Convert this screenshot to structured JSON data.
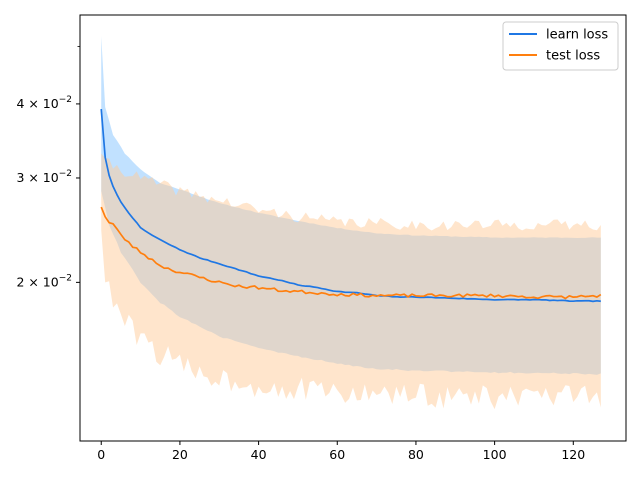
{
  "chart_data": {
    "type": "line",
    "y_scale": "log",
    "xlim": [
      -5.4,
      133.4
    ],
    "ylim": [
      0.0108,
      0.0565
    ],
    "x_ticks": [
      {
        "value": 0,
        "label": "0"
      },
      {
        "value": 20,
        "label": "20"
      },
      {
        "value": 40,
        "label": "40"
      },
      {
        "value": 60,
        "label": "60"
      },
      {
        "value": 80,
        "label": "80"
      },
      {
        "value": 100,
        "label": "100"
      },
      {
        "value": 120,
        "label": "120"
      }
    ],
    "y_ticks": [
      {
        "value": 0.02,
        "label": "2 × 10⁻²",
        "mantissa": "2",
        "base": "10",
        "exponent": "−2"
      },
      {
        "value": 0.03,
        "label": "3 × 10⁻²",
        "mantissa": "3",
        "base": "10",
        "exponent": "−2"
      },
      {
        "value": 0.04,
        "label": "4 × 10⁻²",
        "mantissa": "4",
        "base": "10",
        "exponent": "−2"
      }
    ],
    "y_minor_ticks": [
      0.05
    ],
    "grid": false,
    "legend_position": "upper-right",
    "series": [
      {
        "name": "learn loss",
        "color": "#1f77e4",
        "band_color": "#8ec8ff",
        "keypoints": [
          [
            0,
            0.0392
          ],
          [
            1,
            0.0325
          ],
          [
            2,
            0.0303
          ],
          [
            3,
            0.029
          ],
          [
            5,
            0.0273
          ],
          [
            7,
            0.0262
          ],
          [
            10,
            0.0247
          ],
          [
            13,
            0.024
          ],
          [
            16,
            0.0234
          ],
          [
            20,
            0.0227
          ],
          [
            25,
            0.022
          ],
          [
            30,
            0.0215
          ],
          [
            35,
            0.021
          ],
          [
            40,
            0.0205
          ],
          [
            45,
            0.0202
          ],
          [
            50,
            0.0198
          ],
          [
            55,
            0.0196
          ],
          [
            60,
            0.0193
          ],
          [
            65,
            0.0192
          ],
          [
            70,
            0.019
          ],
          [
            75,
            0.0189
          ],
          [
            80,
            0.0189
          ],
          [
            90,
            0.0188
          ],
          [
            100,
            0.0187
          ],
          [
            110,
            0.0187
          ],
          [
            120,
            0.0186
          ],
          [
            127,
            0.0186
          ]
        ],
        "noise": 0.0013,
        "seed": 7,
        "upper_keypoints": [
          [
            0,
            0.052
          ],
          [
            1,
            0.0395
          ],
          [
            3,
            0.0355
          ],
          [
            6,
            0.033
          ],
          [
            10,
            0.031
          ],
          [
            15,
            0.0294
          ],
          [
            20,
            0.0287
          ],
          [
            30,
            0.0272
          ],
          [
            40,
            0.0262
          ],
          [
            50,
            0.0254
          ],
          [
            60,
            0.0247
          ],
          [
            70,
            0.0242
          ],
          [
            80,
            0.024
          ],
          [
            100,
            0.0238
          ],
          [
            127,
            0.0238
          ]
        ],
        "lower_keypoints": [
          [
            0,
            0.0285
          ],
          [
            2,
            0.025
          ],
          [
            5,
            0.0225
          ],
          [
            10,
            0.02
          ],
          [
            15,
            0.0185
          ],
          [
            20,
            0.0175
          ],
          [
            30,
            0.0162
          ],
          [
            40,
            0.0155
          ],
          [
            50,
            0.015
          ],
          [
            60,
            0.0146
          ],
          [
            70,
            0.0143
          ],
          [
            80,
            0.0142
          ],
          [
            100,
            0.0141
          ],
          [
            127,
            0.014
          ]
        ],
        "band_noise": 0.0015,
        "band_seed": 11
      },
      {
        "name": "test loss",
        "color": "#ff7f0e",
        "band_color": "#ffcc99",
        "keypoints": [
          [
            0,
            0.0268
          ],
          [
            1,
            0.0258
          ],
          [
            2,
            0.0252
          ],
          [
            3,
            0.0251
          ],
          [
            5,
            0.024
          ],
          [
            8,
            0.023
          ],
          [
            10,
            0.0225
          ],
          [
            13,
            0.0218
          ],
          [
            16,
            0.0212
          ],
          [
            20,
            0.0208
          ],
          [
            25,
            0.0204
          ],
          [
            30,
            0.02
          ],
          [
            35,
            0.0197
          ],
          [
            40,
            0.0196
          ],
          [
            45,
            0.0194
          ],
          [
            50,
            0.0193
          ],
          [
            55,
            0.0192
          ],
          [
            60,
            0.0191
          ],
          [
            70,
            0.019
          ],
          [
            80,
            0.019
          ],
          [
            90,
            0.019
          ],
          [
            100,
            0.019
          ],
          [
            110,
            0.0189
          ],
          [
            120,
            0.0189
          ],
          [
            127,
            0.019
          ]
        ],
        "noise": 0.006,
        "seed": 23,
        "upper_keypoints": [
          [
            0,
            0.033
          ],
          [
            2,
            0.0318
          ],
          [
            5,
            0.031
          ],
          [
            10,
            0.03
          ],
          [
            20,
            0.0285
          ],
          [
            30,
            0.0275
          ],
          [
            40,
            0.0265
          ],
          [
            50,
            0.0258
          ],
          [
            60,
            0.0253
          ],
          [
            80,
            0.025
          ],
          [
            100,
            0.025
          ],
          [
            127,
            0.025
          ]
        ],
        "lower_keypoints": [
          [
            0,
            0.0245
          ],
          [
            1,
            0.02
          ],
          [
            3,
            0.0185
          ],
          [
            6,
            0.0172
          ],
          [
            10,
            0.016
          ],
          [
            15,
            0.0152
          ],
          [
            20,
            0.0145
          ],
          [
            30,
            0.0138
          ],
          [
            40,
            0.0134
          ],
          [
            60,
            0.013
          ],
          [
            80,
            0.0129
          ],
          [
            100,
            0.0128
          ],
          [
            127,
            0.0128
          ]
        ],
        "band_noise": 0.022,
        "band_seed": 41
      }
    ],
    "n_points": 128
  }
}
